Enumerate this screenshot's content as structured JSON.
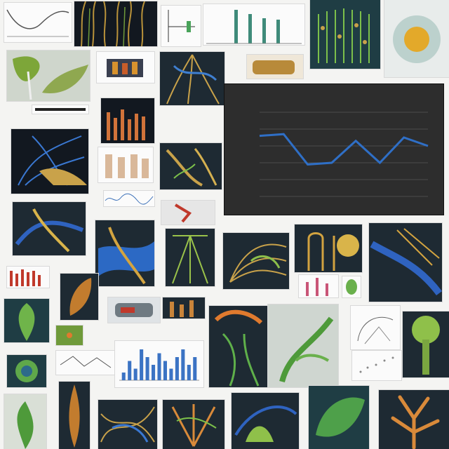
{
  "main_chart": {
    "title": "",
    "chart_data": {
      "type": "line",
      "x": [
        1,
        2,
        3,
        4,
        5,
        6,
        7,
        8
      ],
      "values": [
        7.2,
        7.4,
        3.8,
        4.0,
        6.6,
        4.0,
        7.0,
        6.0
      ],
      "ylim": [
        0,
        10
      ],
      "grid": true,
      "line_color": "#2f6fc6"
    }
  },
  "thumb_bar_chart": {
    "chart_data": {
      "type": "bar",
      "values": [
        2,
        5,
        3,
        8,
        6,
        4,
        7,
        5,
        3,
        6,
        8,
        4,
        6
      ],
      "bar_color": "#3b73c4"
    }
  },
  "colors": {
    "gold": "#c9a24a",
    "blue": "#2f63c0",
    "green": "#6da842",
    "dark_bg": "#1e2a33"
  }
}
